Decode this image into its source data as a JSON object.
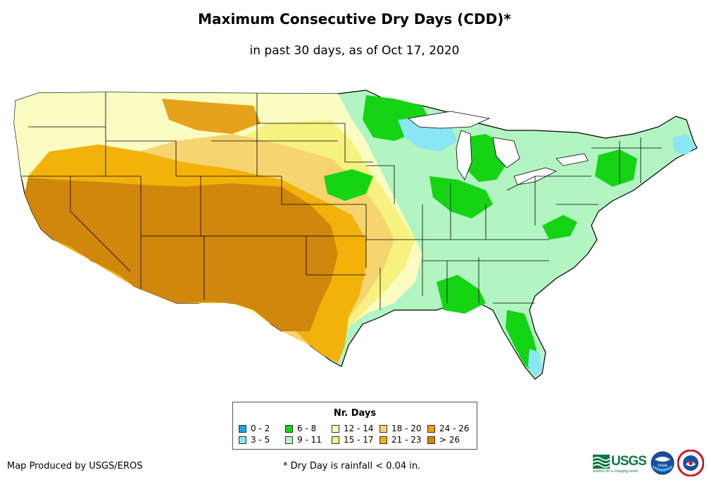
{
  "title": "Maximum Consecutive Dry Days (CDD)*",
  "subtitle": "in past 30 days, as of Oct 17, 2020",
  "legend": {
    "title": "Nr. Days",
    "items": [
      {
        "label": "0 - 2",
        "color": "#1aa3e8"
      },
      {
        "label": "3 - 5",
        "color": "#8ae6f2"
      },
      {
        "label": "6 - 8",
        "color": "#14d414"
      },
      {
        "label": "9 - 11",
        "color": "#b2f5c2"
      },
      {
        "label": "12 - 14",
        "color": "#fafcc2"
      },
      {
        "label": "15 - 17",
        "color": "#f7f280"
      },
      {
        "label": "18 - 20",
        "color": "#f6d470"
      },
      {
        "label": "21 - 23",
        "color": "#f2b20a"
      },
      {
        "label": "24 - 26",
        "color": "#e6a21a"
      },
      {
        "label": "> 26",
        "color": "#d1860c"
      }
    ]
  },
  "footer": {
    "credit": "Map Produced by USGS/EROS",
    "footnote": "* Dry Day is rainfall < 0.04 in."
  },
  "logos": {
    "usgs": "USGS",
    "usgs_tagline": "science for a changing world",
    "noaa": "noaa"
  },
  "icons": {
    "usgs": "usgs-logo-icon",
    "noaa": "noaa-logo-icon",
    "nws": "nws-logo-icon"
  }
}
